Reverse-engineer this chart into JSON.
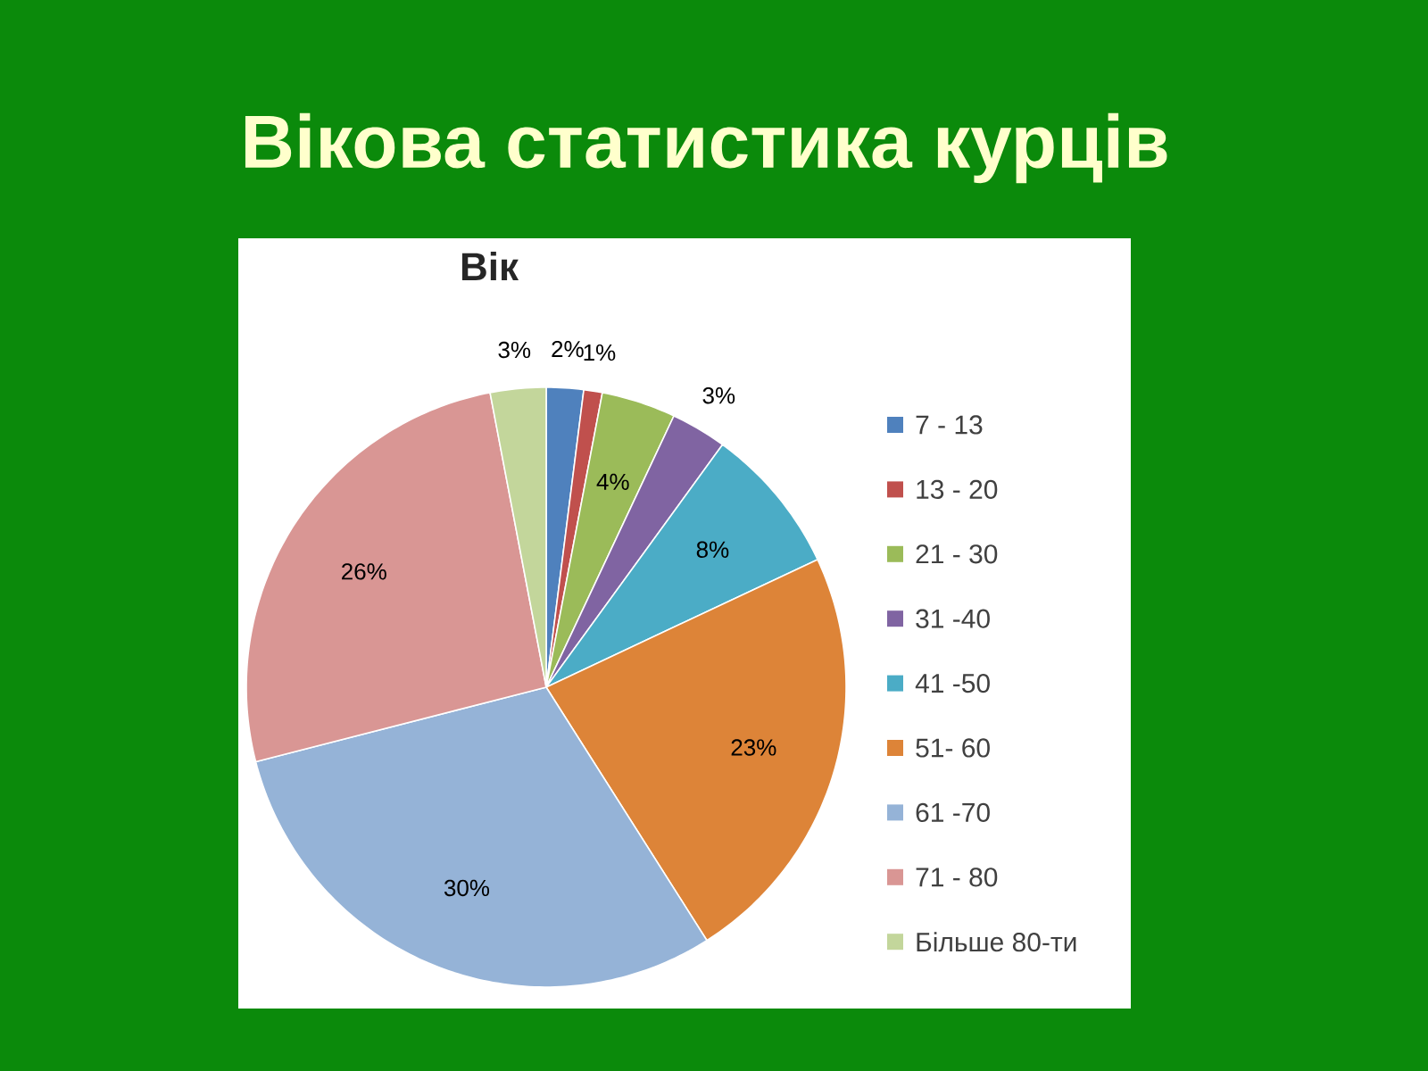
{
  "chart_data": {
    "type": "pie",
    "title": "Вікова статистика курців",
    "subtitle": "Вік",
    "categories": [
      "7 - 13",
      "13 - 20",
      "21 - 30",
      "31 -40",
      "41 -50",
      "51- 60",
      "61 -70",
      "71 - 80",
      "Більше 80-ти"
    ],
    "values": [
      2,
      1,
      4,
      3,
      8,
      23,
      30,
      26,
      3
    ],
    "value_labels": [
      "2%",
      "1%",
      "4%",
      "3%",
      "8%",
      "23%",
      "30%",
      "26%",
      "3%"
    ],
    "colors": [
      "#4f81bd",
      "#c0504d",
      "#9bbb59",
      "#8064a2",
      "#4bacc6",
      "#dd8438",
      "#95b3d7",
      "#d99694",
      "#c3d69b"
    ],
    "legend": "right"
  }
}
